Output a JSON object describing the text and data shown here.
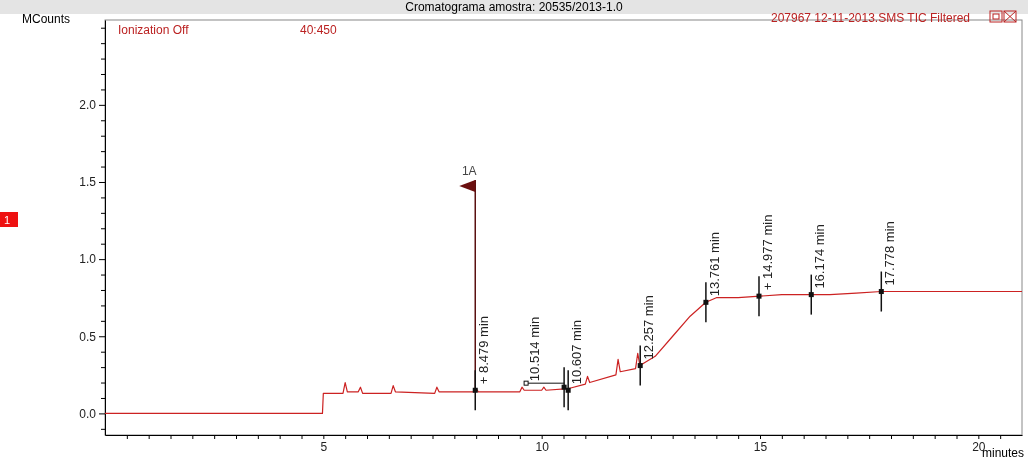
{
  "chart_data": {
    "type": "line",
    "title": "Cromatograma amostra: 20535/2013-1.0",
    "xlabel": "minutes",
    "ylabel": "MCounts",
    "xlim": [
      0,
      21
    ],
    "ylim": [
      -0.14,
      2.55
    ],
    "xticks": [
      {
        "value": 0.5,
        "label": null
      },
      {
        "value": 1,
        "label": null
      },
      {
        "value": 1.5,
        "label": null
      },
      {
        "value": 2,
        "label": null
      },
      {
        "value": 2.5,
        "label": null
      },
      {
        "value": 3,
        "label": null
      },
      {
        "value": 3.5,
        "label": null
      },
      {
        "value": 4,
        "label": null
      },
      {
        "value": 4.5,
        "label": null
      },
      5,
      {
        "value": 5.5,
        "label": null
      },
      {
        "value": 6,
        "label": null
      },
      {
        "value": 6.5,
        "label": null
      },
      {
        "value": 7,
        "label": null
      },
      {
        "value": 7.5,
        "label": null
      },
      {
        "value": 8,
        "label": null
      },
      {
        "value": 8.5,
        "label": null
      },
      {
        "value": 9,
        "label": null
      },
      {
        "value": 9.5,
        "label": null
      },
      10,
      {
        "value": 10.5,
        "label": null
      },
      {
        "value": 11,
        "label": null
      },
      {
        "value": 11.5,
        "label": null
      },
      {
        "value": 12,
        "label": null
      },
      {
        "value": 12.5,
        "label": null
      },
      {
        "value": 13,
        "label": null
      },
      {
        "value": 13.5,
        "label": null
      },
      {
        "value": 14,
        "label": null
      },
      {
        "value": 14.5,
        "label": null
      },
      15,
      {
        "value": 15.5,
        "label": null
      },
      {
        "value": 16,
        "label": null
      },
      {
        "value": 16.5,
        "label": null
      },
      {
        "value": 17,
        "label": null
      },
      {
        "value": 17.5,
        "label": null
      },
      {
        "value": 18,
        "label": null
      },
      {
        "value": 18.5,
        "label": null
      },
      {
        "value": 19,
        "label": null
      },
      {
        "value": 19.5,
        "label": null
      },
      20,
      {
        "value": 20.5,
        "label": null
      }
    ],
    "yticks": [
      {
        "value": -0.1,
        "label": null
      },
      {
        "value": 0,
        "label": "0.0"
      },
      {
        "value": 0.1,
        "label": null
      },
      {
        "value": 0.2,
        "label": null
      },
      {
        "value": 0.3,
        "label": null
      },
      {
        "value": 0.4,
        "label": null
      },
      {
        "value": 0.5,
        "label": "0.5"
      },
      {
        "value": 0.6,
        "label": null
      },
      {
        "value": 0.7,
        "label": null
      },
      {
        "value": 0.8,
        "label": null
      },
      {
        "value": 0.9,
        "label": null
      },
      {
        "value": 1,
        "label": "1.0"
      },
      {
        "value": 1.1,
        "label": null
      },
      {
        "value": 1.2,
        "label": null
      },
      {
        "value": 1.3,
        "label": null
      },
      {
        "value": 1.4,
        "label": null
      },
      {
        "value": 1.5,
        "label": "1.5"
      },
      {
        "value": 1.6,
        "label": null
      },
      {
        "value": 1.7,
        "label": null
      },
      {
        "value": 1.8,
        "label": null
      },
      {
        "value": 1.9,
        "label": null
      },
      {
        "value": 2,
        "label": "2.0"
      },
      {
        "value": 2.1,
        "label": null
      },
      {
        "value": 2.2,
        "label": null
      },
      {
        "value": 2.3,
        "label": null
      },
      {
        "value": 2.4,
        "label": null
      },
      {
        "value": 2.5,
        "label": null
      }
    ],
    "series": [
      {
        "color": "#cc2222",
        "x": [
          0,
          4.98,
          5.0,
          5.45,
          5.5,
          5.55,
          5.8,
          5.85,
          5.9,
          6.55,
          6.6,
          6.65,
          7.55,
          7.6,
          7.65,
          8.45,
          8.5,
          8.55,
          9.5,
          9.55,
          9.6,
          10.0,
          10.05,
          10.1,
          10.6,
          11.0,
          11.05,
          11.1,
          11.7,
          11.75,
          11.8,
          12.15,
          12.2,
          12.25,
          12.6,
          13.0,
          13.4,
          13.76,
          14.0,
          14.5,
          15.0,
          15.5,
          16.17,
          16.6,
          17.2,
          17.78,
          18.5,
          19.5,
          20.5,
          21
        ],
        "values": [
          0,
          0,
          0.13,
          0.13,
          0.2,
          0.14,
          0.14,
          0.17,
          0.13,
          0.13,
          0.18,
          0.14,
          0.13,
          0.17,
          0.14,
          0.14,
          0.16,
          0.14,
          0.14,
          0.17,
          0.15,
          0.15,
          0.17,
          0.15,
          0.16,
          0.19,
          0.24,
          0.2,
          0.25,
          0.35,
          0.27,
          0.29,
          0.39,
          0.31,
          0.37,
          0.5,
          0.63,
          0.72,
          0.75,
          0.75,
          0.76,
          0.77,
          0.77,
          0.77,
          0.78,
          0.79,
          0.79,
          0.79,
          0.79,
          0.79
        ]
      }
    ],
    "annotations": [
      "Ionization Off",
      "40:450",
      "207967 12-11-2013.SMS TIC Filtered",
      "1",
      {
        "text": "1A",
        "x": 8.479,
        "y": 0.15
      },
      {
        "text": "+ 8.479 min",
        "x": 8.479,
        "y": 0.15
      },
      {
        "text": "10.514 min",
        "x": 10.514,
        "y": 0.17
      },
      {
        "text": "10.607 min",
        "x": 10.607,
        "y": 0.15
      },
      {
        "text": "12.257 min",
        "x": 12.257,
        "y": 0.31
      },
      {
        "text": "13.761 min",
        "x": 13.761,
        "y": 0.72
      },
      {
        "text": "+ 14.977 min",
        "x": 14.977,
        "y": 0.76
      },
      {
        "text": "16.174 min",
        "x": 16.174,
        "y": 0.77
      },
      {
        "text": "17.778 min",
        "x": 17.778,
        "y": 0.79
      }
    ]
  }
}
